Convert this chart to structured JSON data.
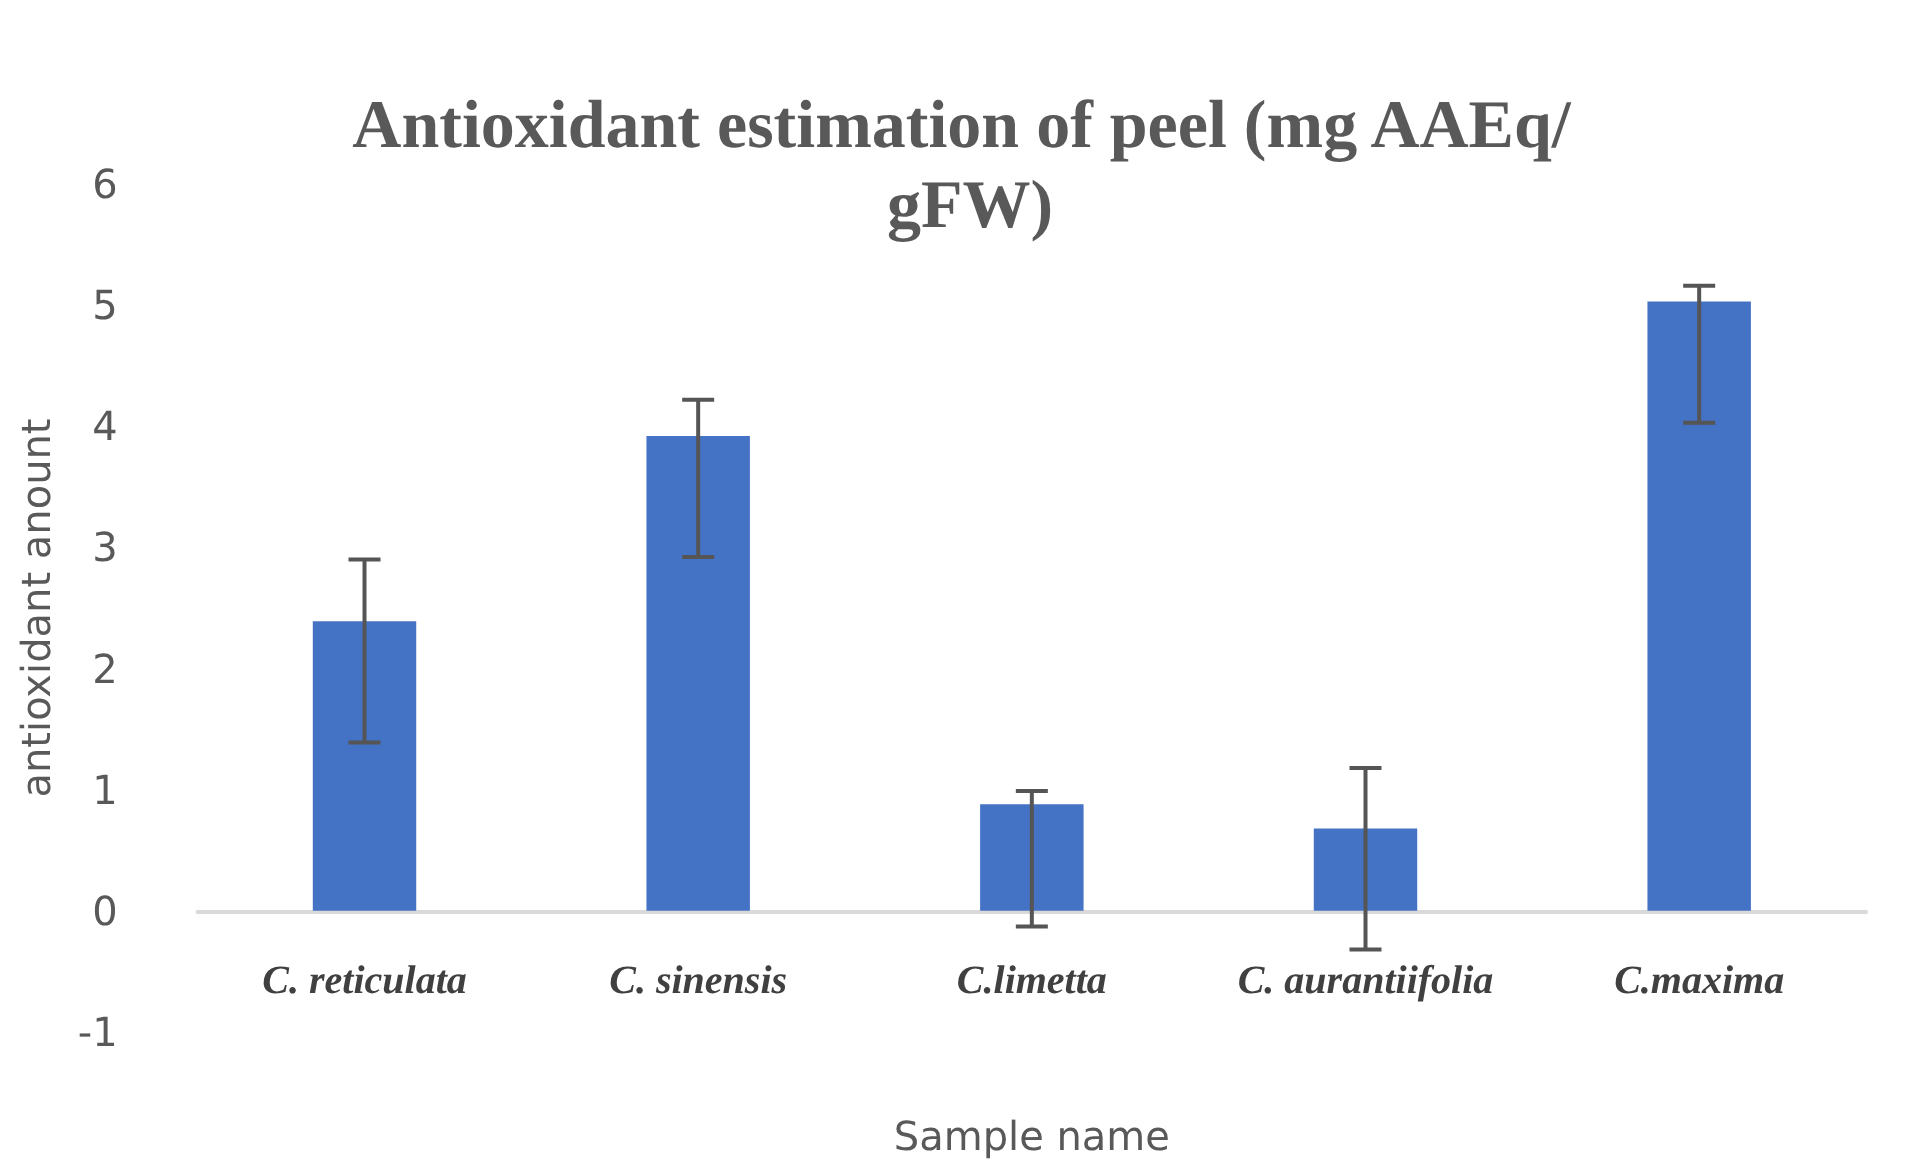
{
  "chart_data": {
    "type": "bar",
    "title": "Antioxidant estimation of peel (mg AAEq/ gFW)",
    "xlabel": "Sample name",
    "ylabel": "antioxidant anount",
    "categories": [
      "C. reticulata",
      "C. sinensis",
      "C.limetta",
      "C. aurantiifolia",
      "C.maxima"
    ],
    "values": [
      2.39,
      3.92,
      0.88,
      0.68,
      5.03
    ],
    "color": "#4472c4",
    "errors": [
      [
        1.39,
        2.9
      ],
      [
        2.92,
        4.22
      ],
      [
        -0.13,
        0.99
      ],
      [
        -0.32,
        1.18
      ],
      [
        4.03,
        5.16
      ]
    ],
    "ylim": [
      -1,
      6
    ],
    "yticks": [
      -1,
      0,
      1,
      2,
      3,
      4,
      5,
      6
    ]
  }
}
